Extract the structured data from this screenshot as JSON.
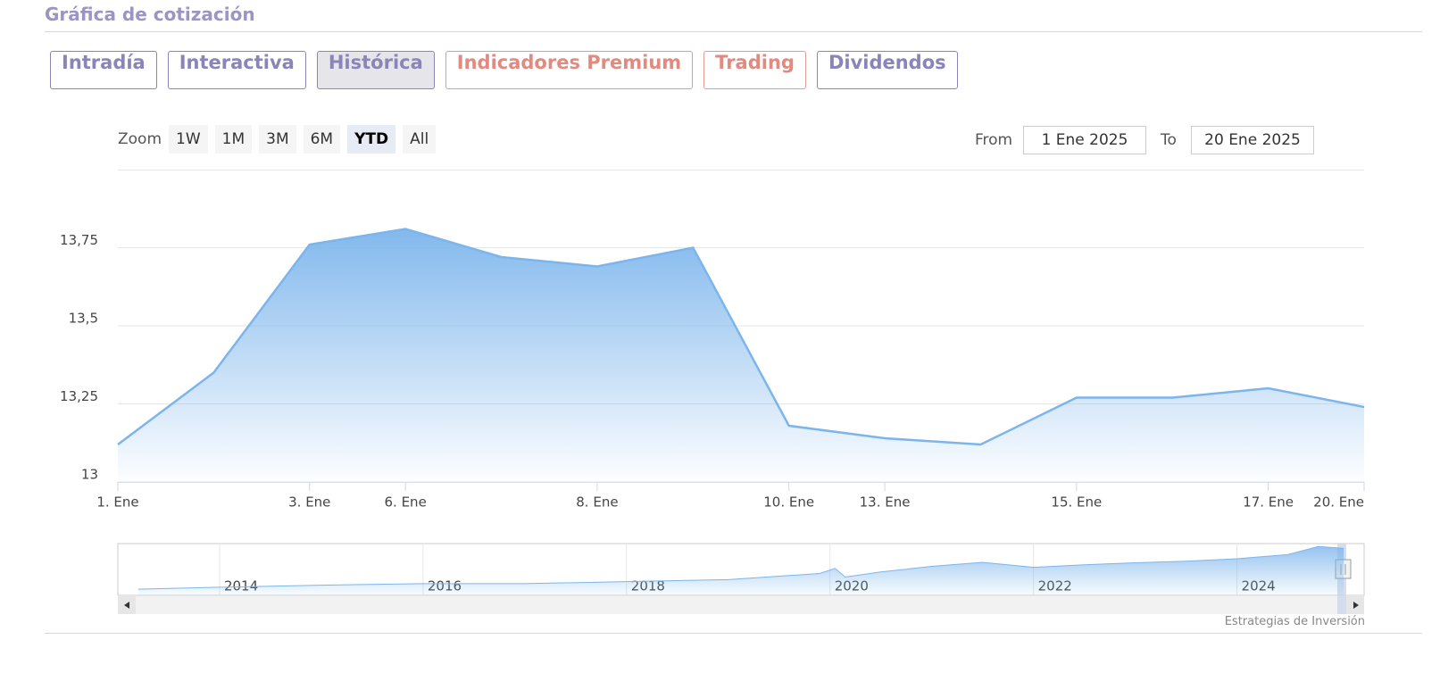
{
  "header": {
    "title": "Gráfica de cotización"
  },
  "tabs": [
    "Intradía",
    "Interactiva",
    "Histórica",
    "Indicadores Premium",
    "Trading",
    "Dividendos"
  ],
  "range_selector": {
    "zoom_label": "Zoom",
    "buttons": [
      "1W",
      "1M",
      "3M",
      "6M",
      "YTD",
      "All"
    ],
    "from_label": "From",
    "from_value": "1 Ene 2025",
    "to_label": "To",
    "to_value": "20 Ene 2025"
  },
  "credits": "Estrategias de Inversión",
  "chart_data": [
    {
      "type": "area",
      "color": "#7cb5ec",
      "categories": [
        "1. Ene",
        null,
        "3. Ene",
        "6. Ene",
        null,
        "8. Ene",
        null,
        "10. Ene",
        "13. Ene",
        null,
        "15. Ene",
        null,
        "17. Ene",
        "20. Ene"
      ],
      "values": [
        13.12,
        13.35,
        13.76,
        13.81,
        13.72,
        13.69,
        13.75,
        13.18,
        13.14,
        13.12,
        13.27,
        13.27,
        13.3,
        13.24
      ],
      "ylim": [
        13,
        14
      ],
      "yticks": [
        {
          "value": 13,
          "label": "13"
        },
        {
          "value": 13.25,
          "label": "13,25"
        },
        {
          "value": 13.5,
          "label": "13,5"
        },
        {
          "value": 13.75,
          "label": "13,75"
        }
      ],
      "grid": true
    },
    {
      "type": "area",
      "color": "#7cb5ec",
      "x": [
        2013.2,
        2014,
        2015,
        2016,
        2017,
        2018,
        2019,
        2019.9,
        2020.05,
        2020.15,
        2020.5,
        2021,
        2021.5,
        2022,
        2022.5,
        2023,
        2023.5,
        2024,
        2024.5,
        2024.8,
        2025.05
      ],
      "values": [
        5.2,
        5.6,
        6.0,
        6.3,
        6.3,
        6.7,
        7.1,
        8.3,
        9.3,
        7.6,
        8.6,
        9.7,
        10.5,
        9.5,
        10.0,
        10.4,
        10.7,
        11.2,
        12.0,
        13.6,
        13.24
      ],
      "xlim": [
        2013,
        2025.25
      ],
      "ylim": [
        4,
        14
      ],
      "xticks": [
        2014,
        2016,
        2018,
        2020,
        2022,
        2024
      ],
      "grid": true
    }
  ]
}
